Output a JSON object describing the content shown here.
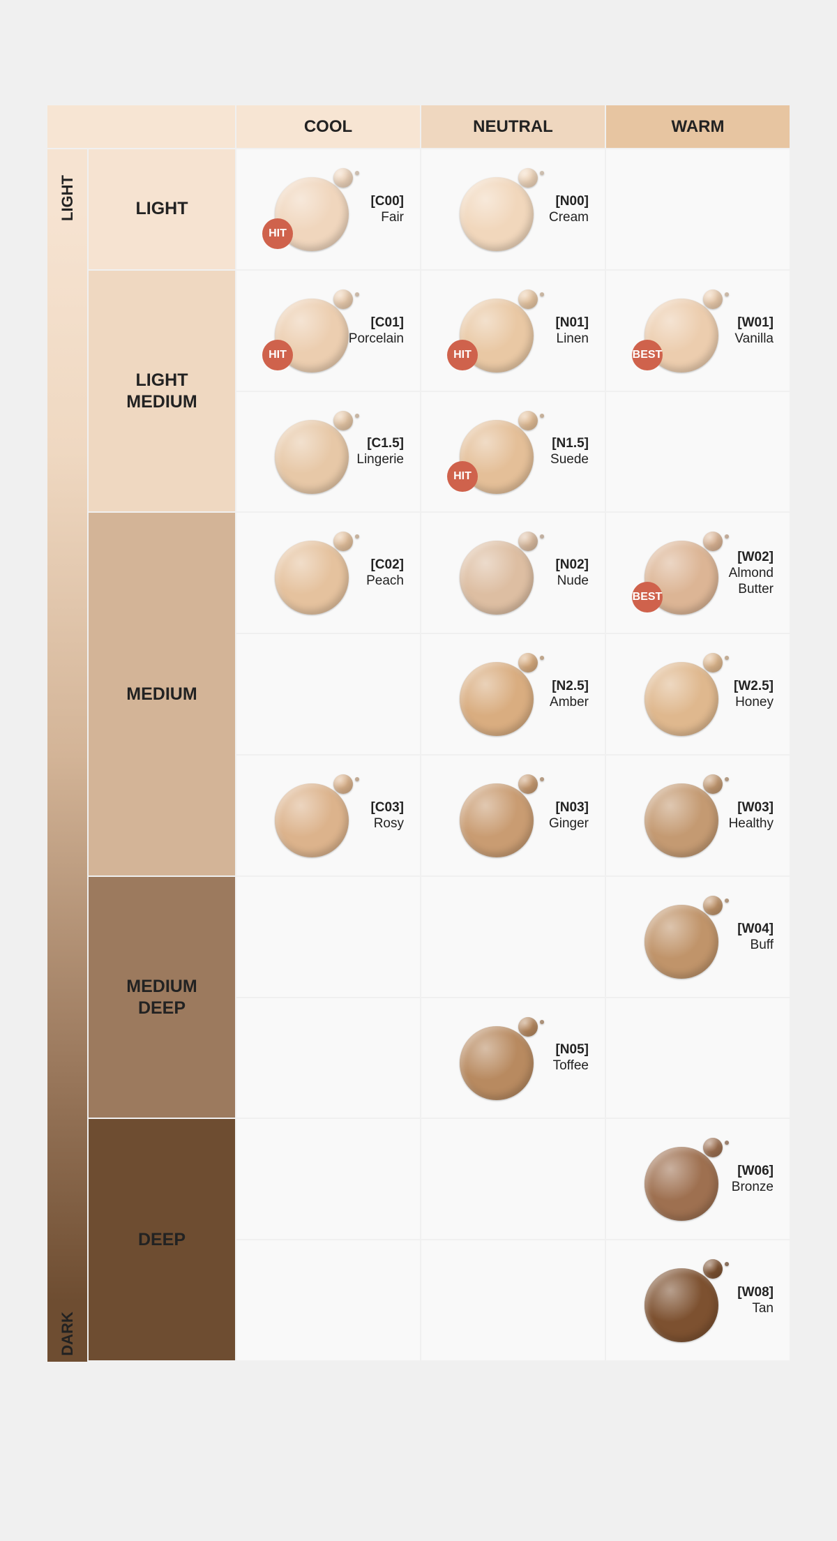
{
  "header": {
    "columns": [
      "COOL",
      "NEUTRAL",
      "WARM"
    ],
    "colors": [
      "#f7e5d3",
      "#efd7bf",
      "#e7c5a1"
    ]
  },
  "scale": {
    "top": "LIGHT",
    "bottom": "DARK"
  },
  "badge_color": "#cf624c",
  "groups": [
    {
      "label": "LIGHT",
      "color": "#f6e3d1",
      "rows": [
        [
          {
            "code": "[C00]",
            "name": "Fair",
            "badge": "HIT",
            "color": "#f0d6bd"
          },
          {
            "code": "[N00]",
            "name": "Cream",
            "color": "#f1d7bc"
          },
          null
        ]
      ]
    },
    {
      "label": "LIGHT MEDIUM",
      "color": "#efd8c1",
      "rows": [
        [
          {
            "code": "[C01]",
            "name": "Porcelain",
            "badge": "HIT",
            "color": "#ecceb0"
          },
          {
            "code": "[N01]",
            "name": "Linen",
            "badge": "HIT",
            "color": "#e9c8a4"
          },
          {
            "code": "[W01]",
            "name": "Vanilla",
            "badge": "BEST",
            "color": "#eccdae"
          }
        ],
        [
          {
            "code": "[C1.5]",
            "name": "Lingerie",
            "color": "#e7c8a7"
          },
          {
            "code": "[N1.5]",
            "name": "Suede",
            "badge": "HIT",
            "color": "#e4bf98"
          },
          null
        ]
      ]
    },
    {
      "label": "MEDIUM",
      "color": "#d3b497",
      "rows": [
        [
          {
            "code": "[C02]",
            "name": "Peach",
            "color": "#e5c29e"
          },
          {
            "code": "[N02]",
            "name": "Nude",
            "color": "#ddbea2"
          },
          {
            "code": "[W02]",
            "name": "Almond Butter",
            "badge": "BEST",
            "color": "#dcb595"
          }
        ],
        [
          null,
          {
            "code": "[N2.5]",
            "name": "Amber",
            "color": "#d9ad80"
          },
          {
            "code": "[W2.5]",
            "name": "Honey",
            "color": "#dfb88e"
          }
        ],
        [
          {
            "code": "[C03]",
            "name": "Rosy",
            "color": "#dcb38c"
          },
          {
            "code": "[N03]",
            "name": "Ginger",
            "color": "#c99c72"
          },
          {
            "code": "[W03]",
            "name": "Healthy",
            "color": "#c49a72"
          }
        ]
      ]
    },
    {
      "label": "MEDIUM DEEP",
      "color": "#9c7a5e",
      "rows": [
        [
          null,
          null,
          {
            "code": "[W04]",
            "name": "Buff",
            "color": "#c0946a"
          }
        ],
        [
          null,
          {
            "code": "[N05]",
            "name": "Toffee",
            "color": "#b88a60"
          },
          null
        ]
      ]
    },
    {
      "label": "DEEP",
      "color": "#6e4d31",
      "rows": [
        [
          null,
          null,
          {
            "code": "[W06]",
            "name": "Bronze",
            "color": "#9e7050"
          }
        ],
        [
          null,
          null,
          {
            "code": "[W08]",
            "name": "Tan",
            "color": "#7d5130"
          }
        ]
      ]
    }
  ]
}
